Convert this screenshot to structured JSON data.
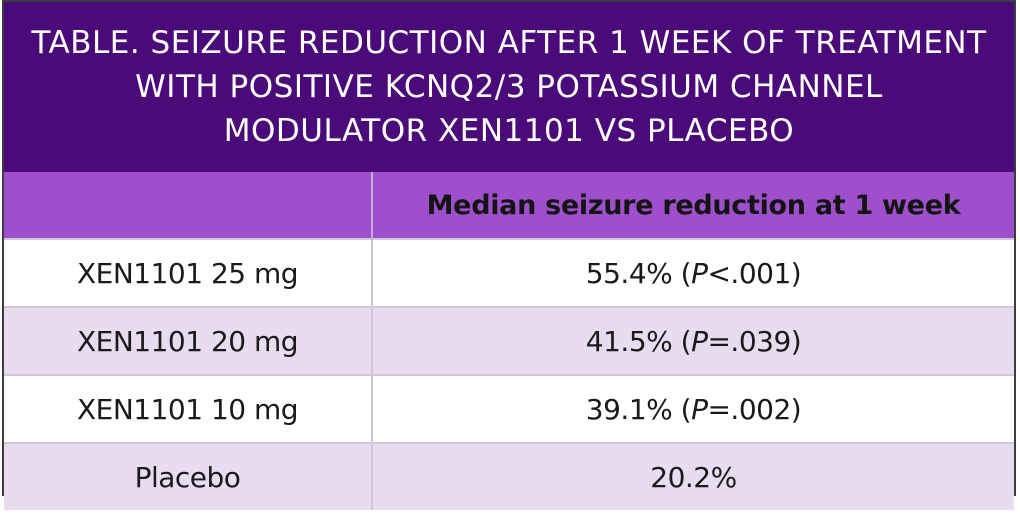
{
  "title": "TABLE. SEIZURE REDUCTION AFTER 1 WEEK OF TREATMENT WITH POSITIVE KCNQ2/3 POTASSIUM CHANNEL MODULATOR XEN1101 VS PLACEBO",
  "colors": {
    "title_bg": "#4a0a79",
    "header_bg": "#9f4fcc",
    "row_alt_bg": "#e8ddf0",
    "border": "#3d3d3d"
  },
  "table": {
    "headers": [
      "",
      "Median seizure reduction at 1 week"
    ],
    "rows": [
      {
        "label": "XEN1101 25 mg",
        "pct": "55.4%",
        "p_open": " (",
        "p_label": "P",
        "p_val": "<.001)"
      },
      {
        "label": "XEN1101 20 mg",
        "pct": "41.5%",
        "p_open": " (",
        "p_label": "P",
        "p_val": "=.039)"
      },
      {
        "label": "XEN1101 10 mg",
        "pct": "39.1%",
        "p_open": " (",
        "p_label": "P",
        "p_val": "=.002)"
      },
      {
        "label": "Placebo",
        "pct": "20.2%",
        "p_open": "",
        "p_label": "",
        "p_val": ""
      }
    ]
  }
}
